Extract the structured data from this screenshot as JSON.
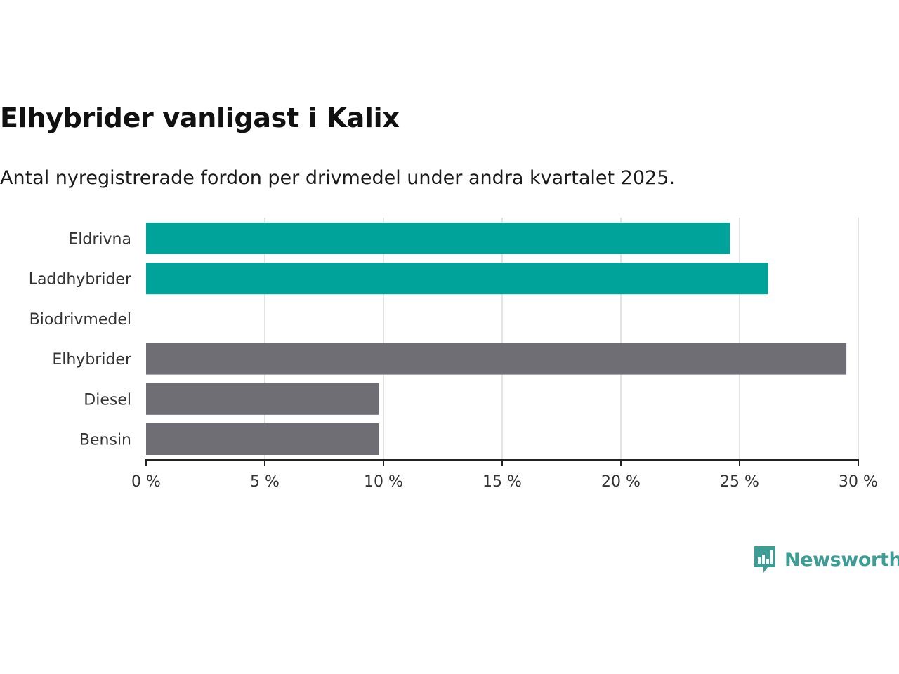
{
  "chart_data": {
    "type": "bar",
    "orientation": "horizontal",
    "title": "Elhybrider vanligast i Kalix",
    "subtitle": "Antal nyregistrerade fordon per drivmedel under andra kvartalet 2025.",
    "categories": [
      "Eldrivna",
      "Laddhybrider",
      "Biodrivmedel",
      "Elhybrider",
      "Diesel",
      "Bensin"
    ],
    "values": [
      24.6,
      26.2,
      0,
      29.5,
      9.8,
      9.8
    ],
    "bar_colors": [
      "#00a39a",
      "#00a39a",
      "#00a39a",
      "#6f6e75",
      "#6f6e75",
      "#6f6e75"
    ],
    "x_ticks": [
      0,
      5,
      10,
      15,
      20,
      25,
      30
    ],
    "x_tick_labels": [
      "0 %",
      "5 %",
      "10 %",
      "15 %",
      "20 %",
      "25 %",
      "30 %"
    ],
    "xlim": [
      0,
      30
    ],
    "xlabel": "",
    "ylabel": "",
    "grid": true,
    "legend": false
  },
  "branding": {
    "logo_text": "Newsworthy",
    "logo_color": "#3d9c93",
    "logo_icon": "bar-chart-speech-bubble-icon"
  }
}
